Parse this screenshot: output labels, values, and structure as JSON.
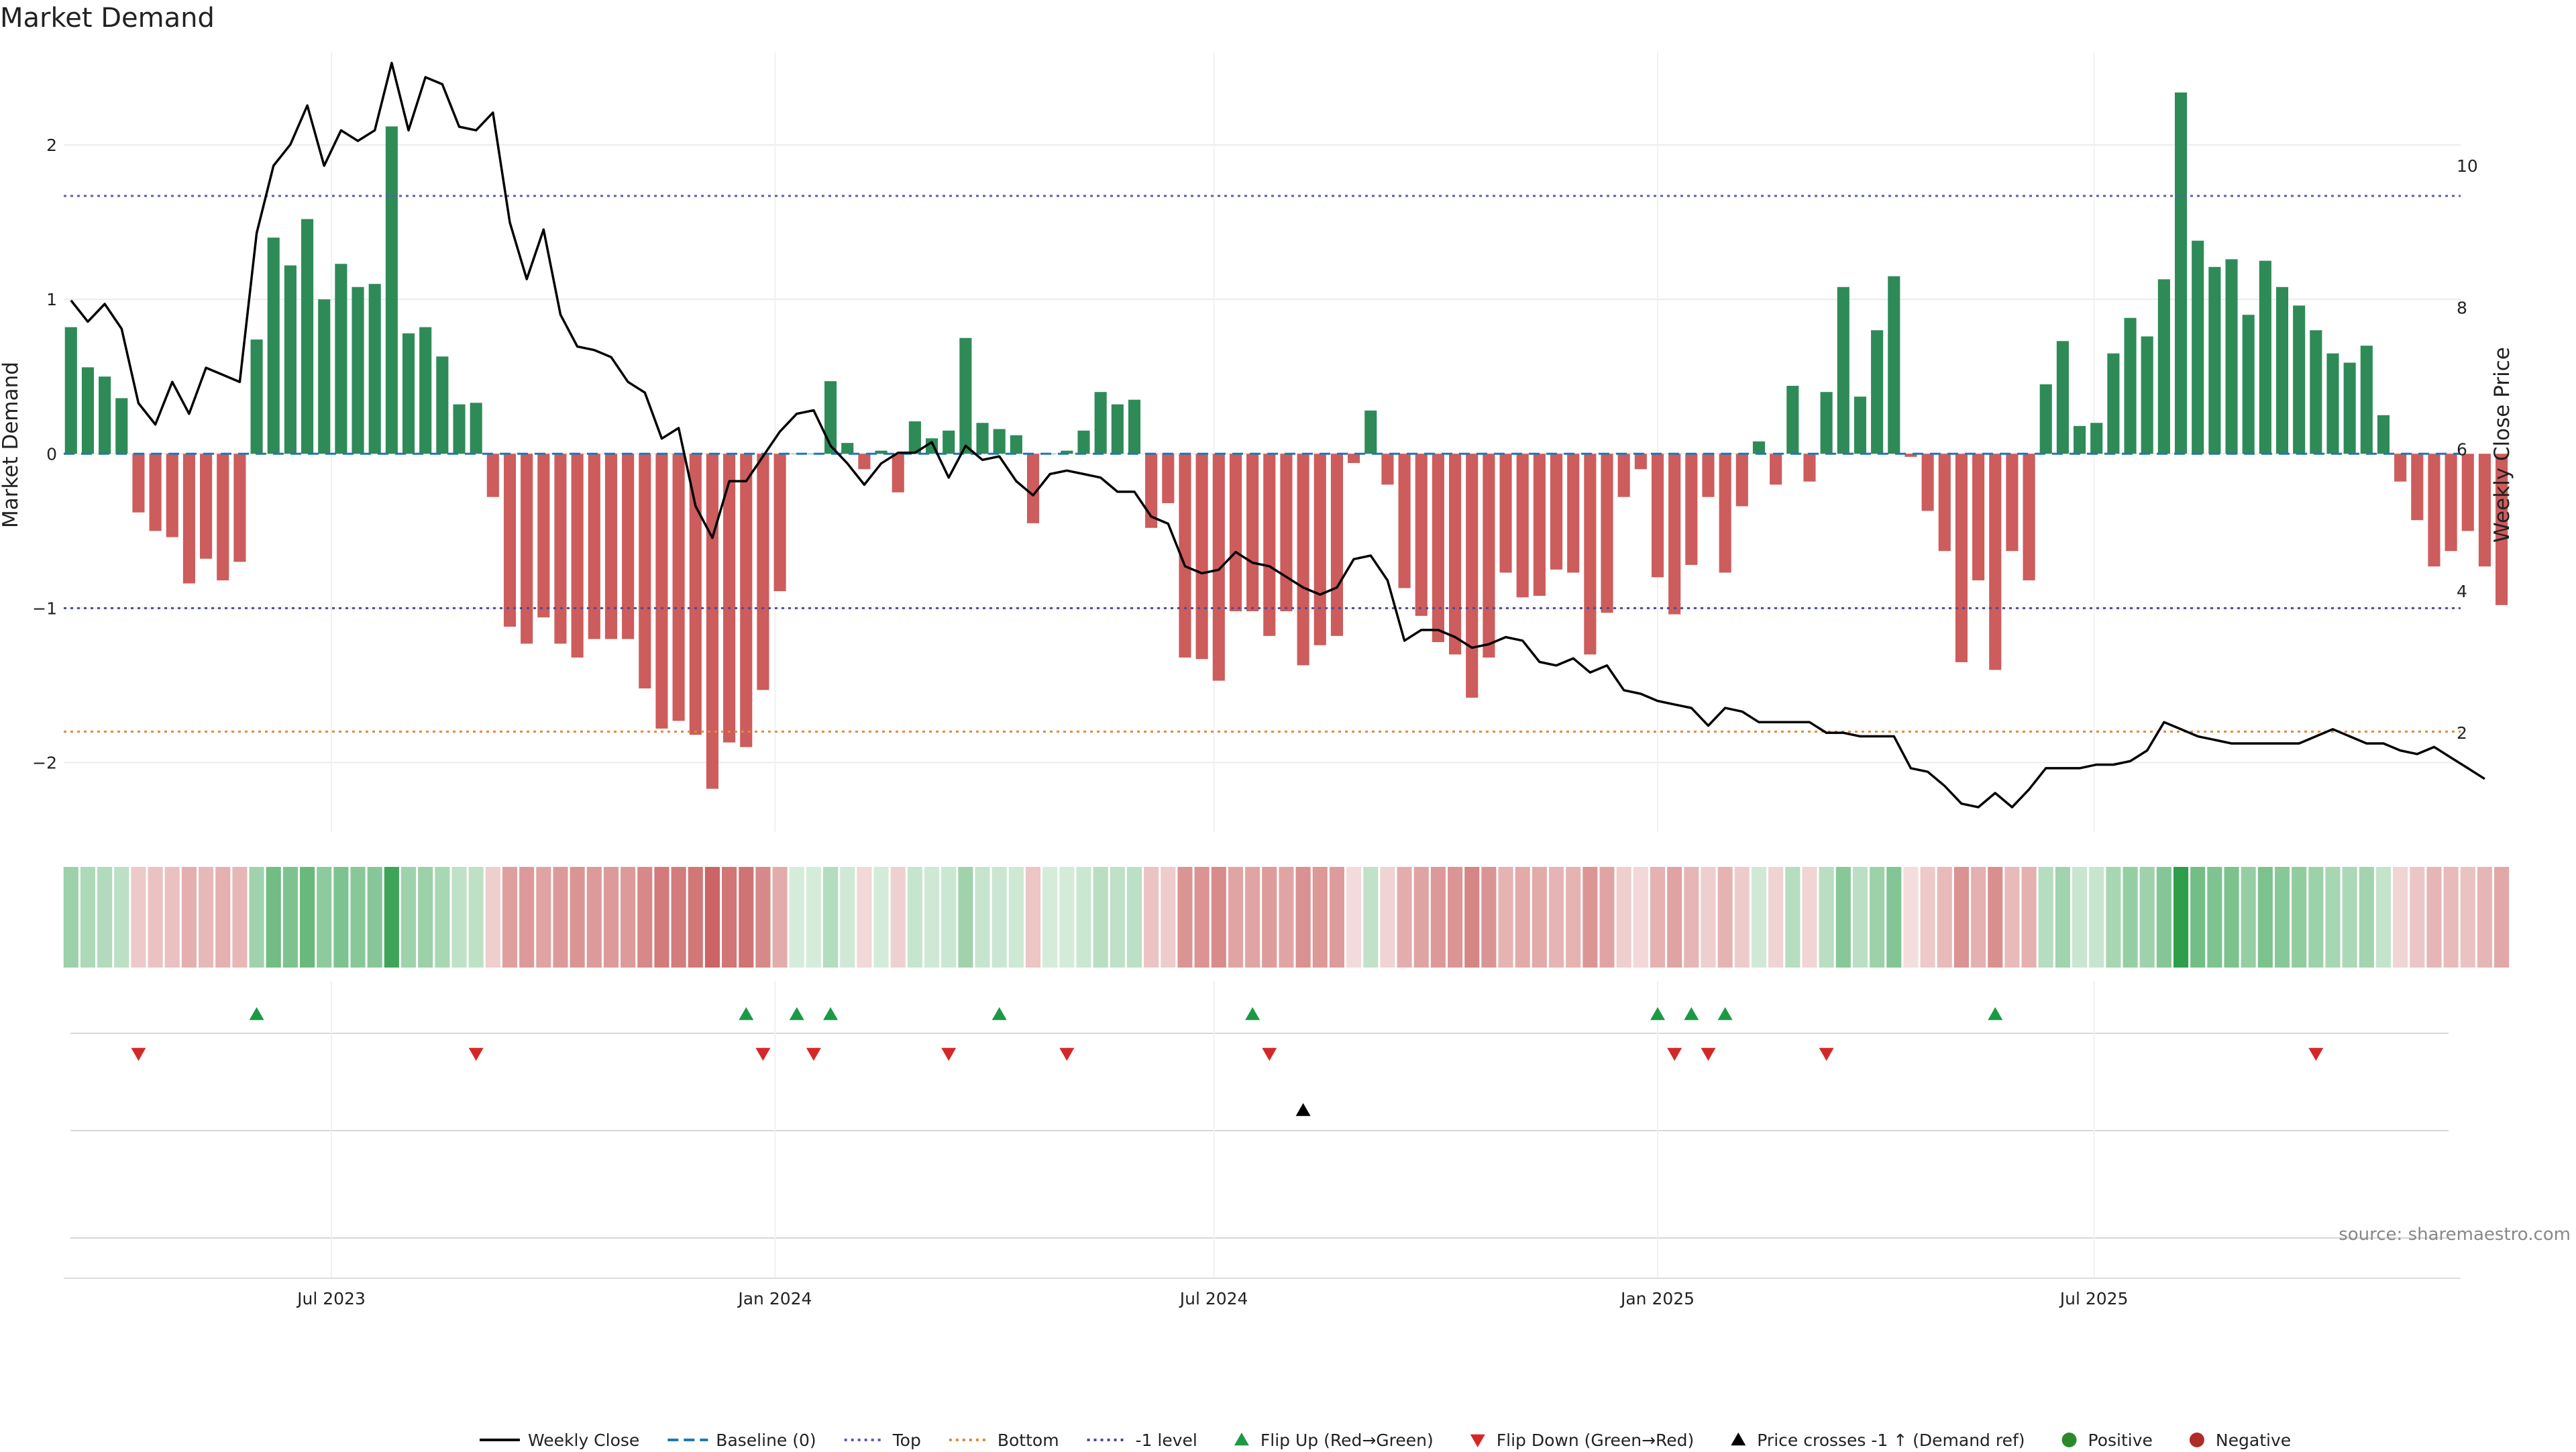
{
  "chart_data": {
    "type": "bar",
    "title": "Market Demand",
    "ylabel": "Market Demand",
    "y2label": "Weekly Close Price",
    "ylim": [
      -2.45,
      2.6
    ],
    "y2lim": [
      0.6,
      11.6
    ],
    "yticks": [
      -2,
      -1,
      0,
      1,
      2
    ],
    "y2ticks": [
      2,
      4,
      6,
      8,
      10
    ],
    "xlim": [
      "2023-03-12",
      "2025-11-30"
    ],
    "xticks": [
      {
        "date": "2023-07-01",
        "label": "Jul 2023"
      },
      {
        "date": "2024-01-01",
        "label": "Jan 2024"
      },
      {
        "date": "2024-07-01",
        "label": "Jul 2024"
      },
      {
        "date": "2025-01-01",
        "label": "Jan 2025"
      },
      {
        "date": "2025-07-01",
        "label": "Jul 2025"
      }
    ],
    "start_date": "2023-03-15",
    "reference_lines": {
      "top": 1.67,
      "bottom": -1.8,
      "minus_one": -1.0,
      "baseline": 0
    },
    "demand": [
      0.82,
      0.56,
      0.5,
      0.36,
      -0.38,
      -0.5,
      -0.54,
      -0.84,
      -0.68,
      -0.82,
      -0.7,
      0.74,
      1.4,
      1.22,
      1.52,
      1.0,
      1.23,
      1.08,
      1.1,
      2.12,
      0.78,
      0.82,
      0.63,
      0.32,
      0.33,
      -0.28,
      -1.12,
      -1.23,
      -1.06,
      -1.23,
      -1.32,
      -1.2,
      -1.2,
      -1.2,
      -1.52,
      -1.78,
      -1.73,
      -1.82,
      -2.17,
      -1.87,
      -1.9,
      -1.53,
      -0.89,
      0.0,
      0.0,
      0.47,
      0.07,
      -0.1,
      0.02,
      -0.25,
      0.21,
      0.1,
      0.15,
      0.75,
      0.2,
      0.16,
      0.12,
      -0.45,
      0.0,
      0.02,
      0.15,
      0.4,
      0.32,
      0.35,
      -0.48,
      -0.32,
      -1.32,
      -1.33,
      -1.47,
      -1.02,
      -1.02,
      -1.18,
      -1.02,
      -1.37,
      -1.24,
      -1.18,
      -0.06,
      0.28,
      -0.2,
      -0.87,
      -1.05,
      -1.22,
      -1.3,
      -1.58,
      -1.32,
      -0.77,
      -0.93,
      -0.92,
      -0.75,
      -0.77,
      -1.3,
      -1.03,
      -0.28,
      -0.1,
      -0.8,
      -1.04,
      -0.72,
      -0.28,
      -0.77,
      -0.34,
      0.08,
      -0.2,
      0.44,
      -0.18,
      0.4,
      1.08,
      0.37,
      0.8,
      1.15,
      -0.02,
      -0.37,
      -0.63,
      -1.35,
      -0.82,
      -1.4,
      -0.63,
      -0.82,
      0.45,
      0.73,
      0.18,
      0.2,
      0.65,
      0.88,
      0.76,
      1.13,
      2.34,
      1.38,
      1.21,
      1.26,
      0.9,
      1.25,
      1.08,
      0.96,
      0.8,
      0.65,
      0.59,
      0.7,
      0.25,
      -0.18,
      -0.43,
      -0.73,
      -0.63,
      -0.5,
      -0.73,
      -0.98
    ],
    "close": [
      8.1,
      7.8,
      8.05,
      7.7,
      6.65,
      6.35,
      6.95,
      6.5,
      7.15,
      7.05,
      6.95,
      9.05,
      10.0,
      10.3,
      10.85,
      10.0,
      10.5,
      10.35,
      10.5,
      11.45,
      10.5,
      11.25,
      11.15,
      10.55,
      10.5,
      10.75,
      9.2,
      8.4,
      9.1,
      7.9,
      7.45,
      7.4,
      7.3,
      6.95,
      6.8,
      6.15,
      6.3,
      5.2,
      4.75,
      5.55,
      5.55,
      5.9,
      6.25,
      6.5,
      6.55,
      6.05,
      5.8,
      5.5,
      5.8,
      5.95,
      5.95,
      6.1,
      5.6,
      6.05,
      5.85,
      5.9,
      5.55,
      5.35,
      5.65,
      5.7,
      5.65,
      5.6,
      5.4,
      5.4,
      5.05,
      4.95,
      4.35,
      4.25,
      4.3,
      4.55,
      4.4,
      4.35,
      4.2,
      4.05,
      3.95,
      4.05,
      4.45,
      4.5,
      4.15,
      3.3,
      3.45,
      3.45,
      3.35,
      3.2,
      3.25,
      3.35,
      3.3,
      3.0,
      2.95,
      3.05,
      2.85,
      2.95,
      2.6,
      2.55,
      2.45,
      2.4,
      2.35,
      2.1,
      2.35,
      2.3,
      2.15,
      2.15,
      2.15,
      2.15,
      2.0,
      2.0,
      1.95,
      1.95,
      1.95,
      1.5,
      1.45,
      1.25,
      1.0,
      0.95,
      1.15,
      0.95,
      1.2,
      1.5,
      1.5,
      1.5,
      1.55,
      1.55,
      1.6,
      1.75,
      2.15,
      2.05,
      1.95,
      1.9,
      1.85,
      1.85,
      1.85,
      1.85,
      1.85,
      1.95,
      2.05,
      1.95,
      1.85,
      1.85,
      1.75,
      1.7,
      1.8,
      1.65,
      1.5,
      1.35
    ],
    "flip_up": [
      "2023-05-31",
      "2023-12-20",
      "2024-01-10",
      "2024-01-24",
      "2024-04-03",
      "2024-07-17",
      "2025-01-01",
      "2025-01-15",
      "2025-01-29",
      "2025-05-21"
    ],
    "flip_down": [
      "2023-04-12",
      "2023-08-30",
      "2023-12-27",
      "2024-01-17",
      "2024-03-13",
      "2024-05-01",
      "2024-07-24",
      "2025-01-08",
      "2025-01-22",
      "2025-03-12",
      "2025-10-01"
    ],
    "price_cross": [
      "2024-08-07"
    ],
    "source": "source: sharemaestro.com",
    "legend": [
      {
        "label": "Weekly Close",
        "kind": "line",
        "color": "#000000"
      },
      {
        "label": "Baseline (0)",
        "kind": "dash",
        "color": "#1f77b4"
      },
      {
        "label": "Top",
        "kind": "dot",
        "color": "#5b5bb8"
      },
      {
        "label": "Bottom",
        "kind": "dot",
        "color": "#e08a3c"
      },
      {
        "label": "-1 level",
        "kind": "dot",
        "color": "#4b4b9a"
      },
      {
        "label": "Flip Up (Red→Green)",
        "kind": "up",
        "color": "#1a9a45"
      },
      {
        "label": "Flip Down (Green→Red)",
        "kind": "down",
        "color": "#d62728"
      },
      {
        "label": "Price crosses -1 ↑ (Demand ref)",
        "kind": "up",
        "color": "#000000"
      },
      {
        "label": "Positive",
        "kind": "circle",
        "color": "#2a8a2a"
      },
      {
        "label": "Negative",
        "kind": "circle",
        "color": "#b02a2a"
      }
    ],
    "colors": {
      "positive": "#2e8b57",
      "negative": "#cd5c5c",
      "heat_pos": "#2e9e4a",
      "heat_neg": "#c85a5a"
    }
  }
}
